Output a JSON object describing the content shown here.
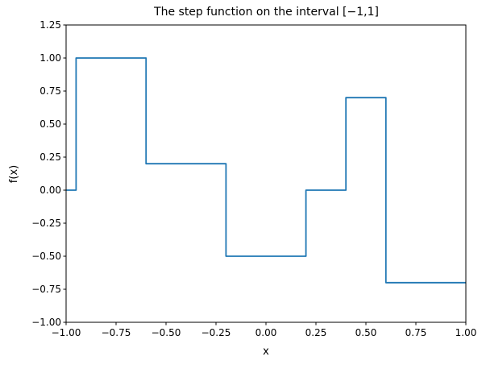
{
  "chart_data": {
    "type": "line",
    "title": "The step function on the interval [−1,1]",
    "xlabel": "x",
    "ylabel": "f(x)",
    "xlim": [
      -1.0,
      1.0
    ],
    "ylim": [
      -1.0,
      1.25
    ],
    "grid": false,
    "xticks": [
      -1.0,
      -0.75,
      -0.5,
      -0.25,
      0.0,
      0.25,
      0.5,
      0.75,
      1.0
    ],
    "xtick_labels": [
      "−1.00",
      "−0.75",
      "−0.50",
      "−0.25",
      "0.00",
      "0.25",
      "0.50",
      "0.75",
      "1.00"
    ],
    "yticks": [
      -1.0,
      -0.75,
      -0.5,
      -0.25,
      0.0,
      0.25,
      0.5,
      0.75,
      1.0,
      1.25
    ],
    "ytick_labels": [
      "−1.00",
      "−0.75",
      "−0.50",
      "−0.25",
      "0.00",
      "0.25",
      "0.50",
      "0.75",
      "1.00",
      "1.25"
    ],
    "series": [
      {
        "color": "#1f77b4",
        "x": [
          -1.0,
          -0.95,
          -0.95,
          -0.6,
          -0.6,
          -0.2,
          -0.2,
          0.2,
          0.2,
          0.4,
          0.4,
          0.6,
          0.6,
          1.0
        ],
        "y": [
          0.0,
          0.0,
          1.0,
          1.0,
          0.2,
          0.2,
          -0.5,
          -0.5,
          0.0,
          0.0,
          0.7,
          0.7,
          -0.7,
          -0.7
        ]
      }
    ]
  }
}
